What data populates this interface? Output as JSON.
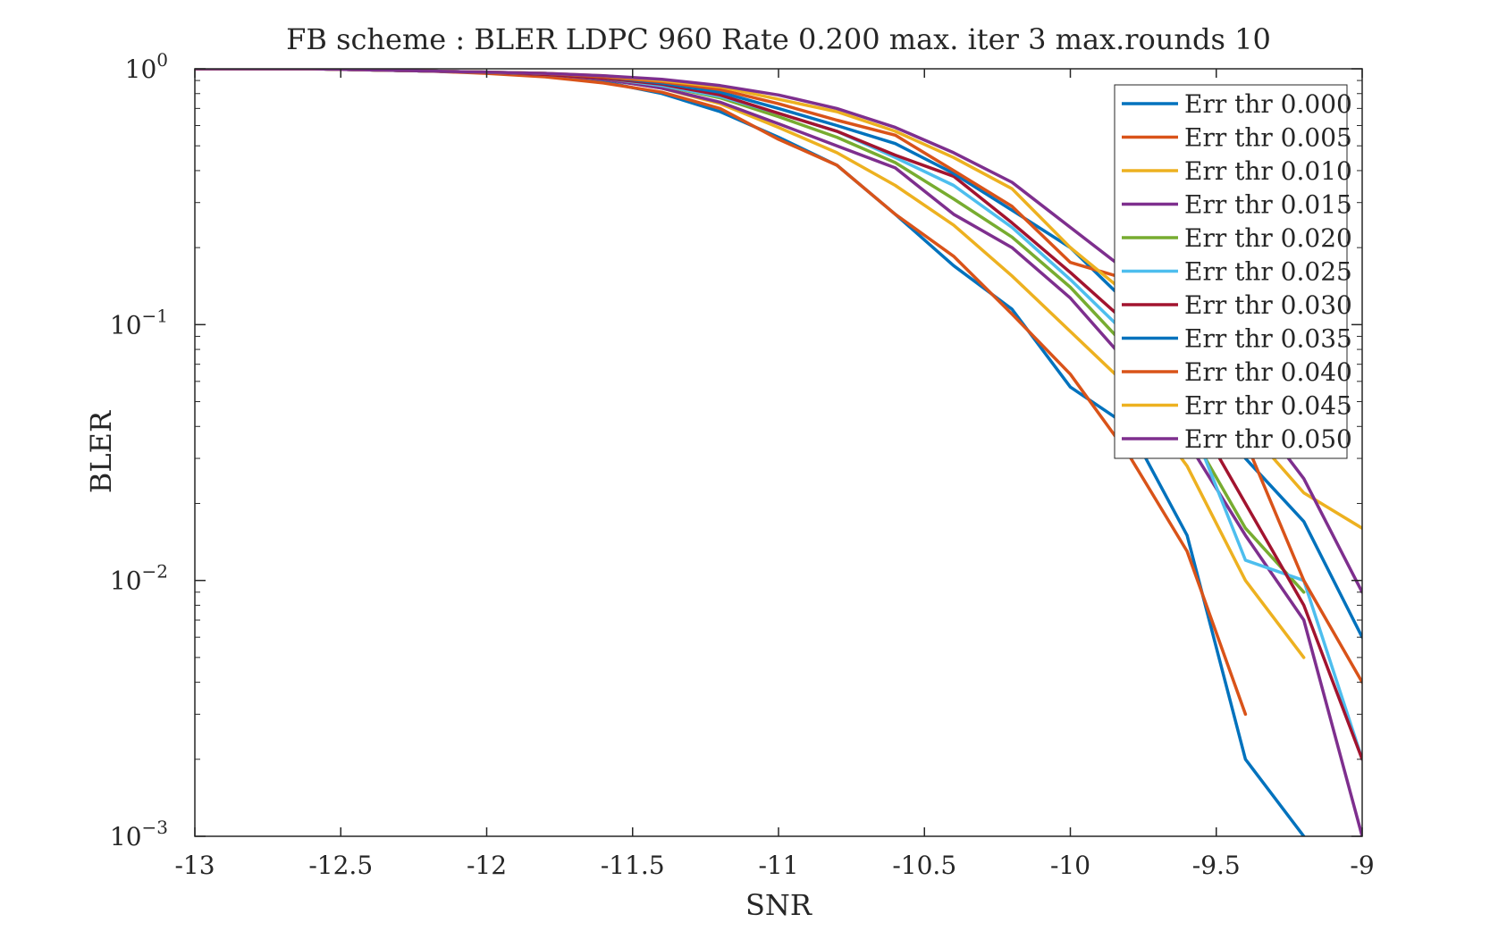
{
  "chart_data": {
    "type": "line",
    "title": "FB scheme : BLER LDPC 960 Rate 0.200 max. iter 3 max.rounds 10",
    "xlabel": "SNR",
    "ylabel": "BLER",
    "xlim": [
      -13,
      -9
    ],
    "ylim": [
      0.001,
      1
    ],
    "yscale": "log",
    "grid": false,
    "legend_position": "top-right",
    "x_ticks": [
      {
        "value": -13,
        "label": "-13"
      },
      {
        "value": -12.5,
        "label": "-12.5"
      },
      {
        "value": -12,
        "label": "-12"
      },
      {
        "value": -11.5,
        "label": "-11.5"
      },
      {
        "value": -11,
        "label": "-11"
      },
      {
        "value": -10.5,
        "label": "-10.5"
      },
      {
        "value": -10,
        "label": "-10"
      },
      {
        "value": -9.5,
        "label": "-9.5"
      },
      {
        "value": -9,
        "label": "-9"
      }
    ],
    "y_ticks": [
      {
        "value": 1,
        "base": "10",
        "exp": "0"
      },
      {
        "value": 0.1,
        "base": "10",
        "exp": "−1"
      },
      {
        "value": 0.01,
        "base": "10",
        "exp": "−2"
      },
      {
        "value": 0.001,
        "base": "10",
        "exp": "−3"
      }
    ],
    "x": [
      -13,
      -12.8,
      -12.6,
      -12.4,
      -12.2,
      -12,
      -11.8,
      -11.6,
      -11.4,
      -11.2,
      -11,
      -10.8,
      -10.6,
      -10.4,
      -10.2,
      -10,
      -9.8,
      -9.6,
      -9.4,
      -9.2,
      -9
    ],
    "series": [
      {
        "name": "Err thr 0.000",
        "color": "#0072BD",
        "values": [
          1,
          1,
          1,
          0.99,
          0.98,
          0.97,
          0.94,
          0.89,
          0.8,
          0.68,
          0.54,
          0.42,
          0.27,
          0.17,
          0.115,
          0.057,
          0.04,
          0.015,
          0.002,
          0.001,
          null
        ]
      },
      {
        "name": "Err thr 0.005",
        "color": "#D95319",
        "values": [
          1,
          1,
          1,
          0.99,
          0.98,
          0.96,
          0.93,
          0.88,
          0.81,
          0.7,
          0.53,
          0.42,
          0.27,
          0.185,
          0.11,
          0.064,
          0.031,
          0.013,
          0.003,
          null,
          null
        ]
      },
      {
        "name": "Err thr 0.010",
        "color": "#EDB120",
        "values": [
          1,
          1,
          1,
          0.99,
          0.98,
          0.97,
          0.95,
          0.91,
          0.84,
          0.73,
          0.59,
          0.47,
          0.35,
          0.245,
          0.155,
          0.094,
          0.057,
          0.028,
          0.01,
          0.005,
          null
        ]
      },
      {
        "name": "Err thr 0.015",
        "color": "#7E2F8E",
        "values": [
          1,
          1,
          1,
          0.99,
          0.98,
          0.97,
          0.95,
          0.91,
          0.84,
          0.74,
          0.61,
          0.5,
          0.41,
          0.27,
          0.2,
          0.127,
          0.07,
          0.035,
          0.015,
          0.007,
          0.001
        ]
      },
      {
        "name": "Err thr 0.020",
        "color": "#77AC30",
        "values": [
          1,
          1,
          1,
          0.99,
          0.98,
          0.97,
          0.95,
          0.92,
          0.86,
          0.77,
          0.65,
          0.54,
          0.43,
          0.31,
          0.22,
          0.14,
          0.08,
          0.04,
          0.016,
          0.009,
          null
        ]
      },
      {
        "name": "Err thr 0.025",
        "color": "#4DBEEE",
        "values": [
          1,
          1,
          1,
          0.99,
          0.98,
          0.97,
          0.95,
          0.92,
          0.86,
          0.78,
          0.67,
          0.57,
          0.45,
          0.35,
          0.24,
          0.15,
          0.09,
          0.045,
          0.012,
          0.01,
          0.002
        ]
      },
      {
        "name": "Err thr 0.030",
        "color": "#A2142F",
        "values": [
          1,
          1,
          1,
          0.99,
          0.98,
          0.97,
          0.95,
          0.92,
          0.87,
          0.79,
          0.67,
          0.57,
          0.46,
          0.38,
          0.25,
          0.16,
          0.1,
          0.05,
          0.02,
          0.008,
          0.002
        ]
      },
      {
        "name": "Err thr 0.035",
        "color": "#0072BD",
        "values": [
          1,
          1,
          1,
          0.99,
          0.98,
          0.97,
          0.96,
          0.93,
          0.88,
          0.81,
          0.7,
          0.6,
          0.51,
          0.39,
          0.28,
          0.2,
          0.12,
          0.06,
          0.03,
          0.017,
          0.006
        ]
      },
      {
        "name": "Err thr 0.040",
        "color": "#D95319",
        "values": [
          1,
          1,
          1,
          0.99,
          0.98,
          0.97,
          0.96,
          0.93,
          0.89,
          0.83,
          0.73,
          0.63,
          0.55,
          0.4,
          0.29,
          0.175,
          0.15,
          0.07,
          0.035,
          0.01,
          0.004
        ]
      },
      {
        "name": "Err thr 0.045",
        "color": "#EDB120",
        "values": [
          1,
          1,
          1,
          0.99,
          0.98,
          0.97,
          0.96,
          0.94,
          0.9,
          0.85,
          0.76,
          0.68,
          0.57,
          0.45,
          0.34,
          0.2,
          0.13,
          0.08,
          0.04,
          0.022,
          0.016
        ]
      },
      {
        "name": "Err thr 0.050",
        "color": "#7E2F8E",
        "values": [
          1,
          1,
          1,
          0.99,
          0.98,
          0.97,
          0.96,
          0.94,
          0.91,
          0.86,
          0.79,
          0.7,
          0.59,
          0.47,
          0.36,
          0.24,
          0.16,
          0.09,
          0.05,
          0.025,
          0.009
        ]
      }
    ]
  }
}
